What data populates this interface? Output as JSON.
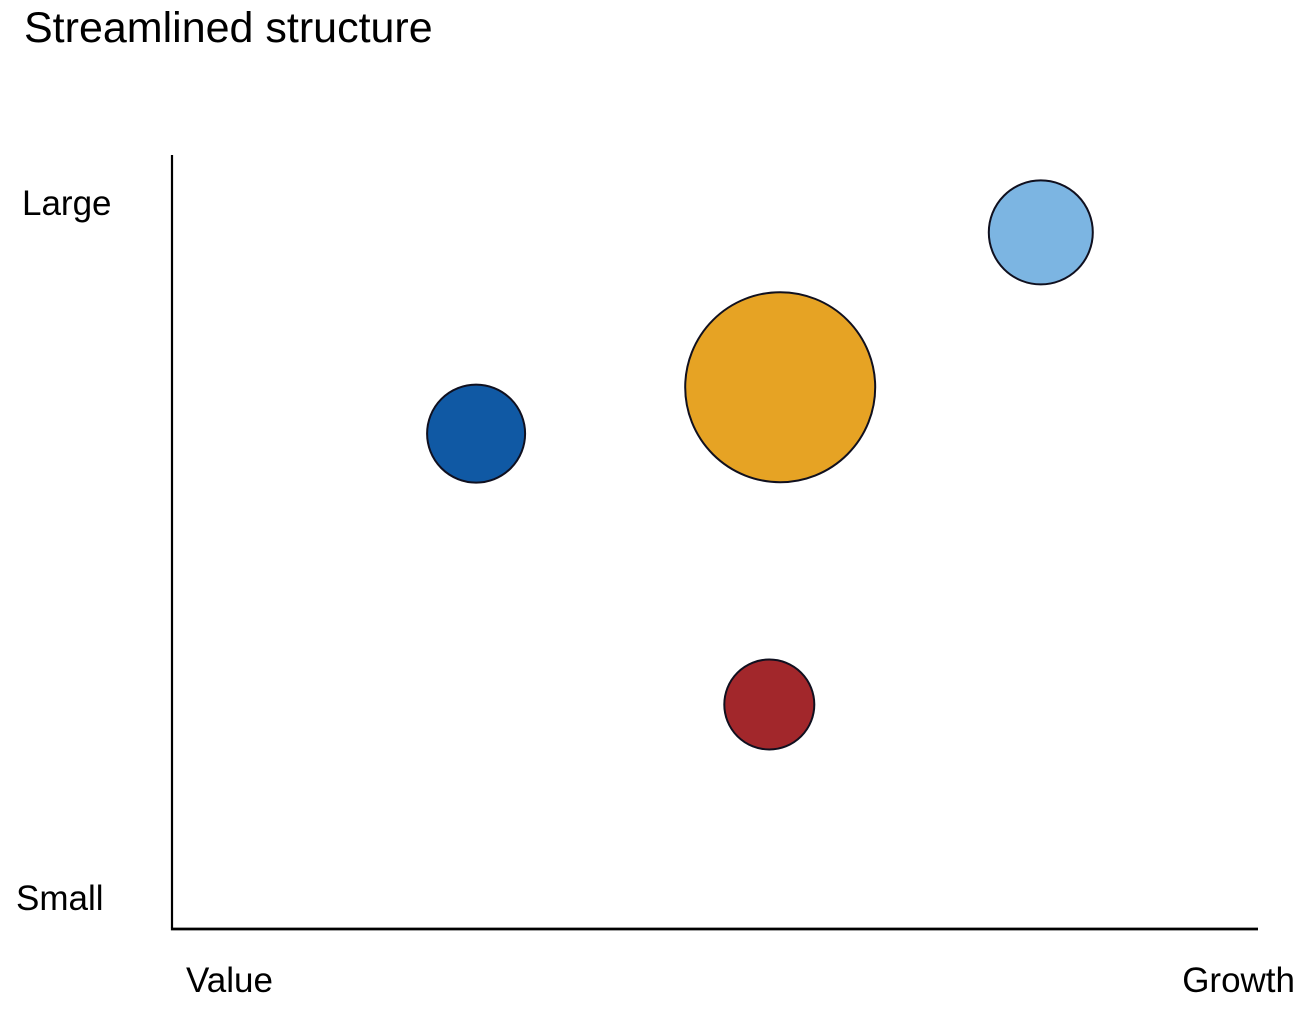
{
  "title": "Streamlined structure",
  "axes": {
    "y_top_label": "Large",
    "y_bottom_label": "Small",
    "x_left_label": "Value",
    "x_right_label": "Growth"
  },
  "chart_data": {
    "type": "scatter",
    "subtype": "bubble",
    "title": "Streamlined structure",
    "x_axis": {
      "left_label": "Value",
      "right_label": "Growth",
      "range": [
        0,
        1
      ],
      "ticks": "none"
    },
    "y_axis": {
      "bottom_label": "Small",
      "top_label": "Large",
      "range": [
        0,
        1
      ],
      "ticks": "none"
    },
    "grid": false,
    "legend": "none",
    "axis_color": "#000000",
    "bubble_outline_color": "#10101f",
    "points": [
      {
        "name": "light-blue-bubble",
        "x": 0.8,
        "y": 0.9,
        "radius_px": 52,
        "color": "#7CB5E2"
      },
      {
        "name": "orange-bubble",
        "x": 0.56,
        "y": 0.7,
        "radius_px": 95,
        "color": "#E6A324"
      },
      {
        "name": "dark-blue-bubble",
        "x": 0.28,
        "y": 0.64,
        "radius_px": 49,
        "color": "#1059A4"
      },
      {
        "name": "dark-red-bubble",
        "x": 0.55,
        "y": 0.29,
        "radius_px": 45,
        "color": "#A2272B"
      }
    ]
  }
}
